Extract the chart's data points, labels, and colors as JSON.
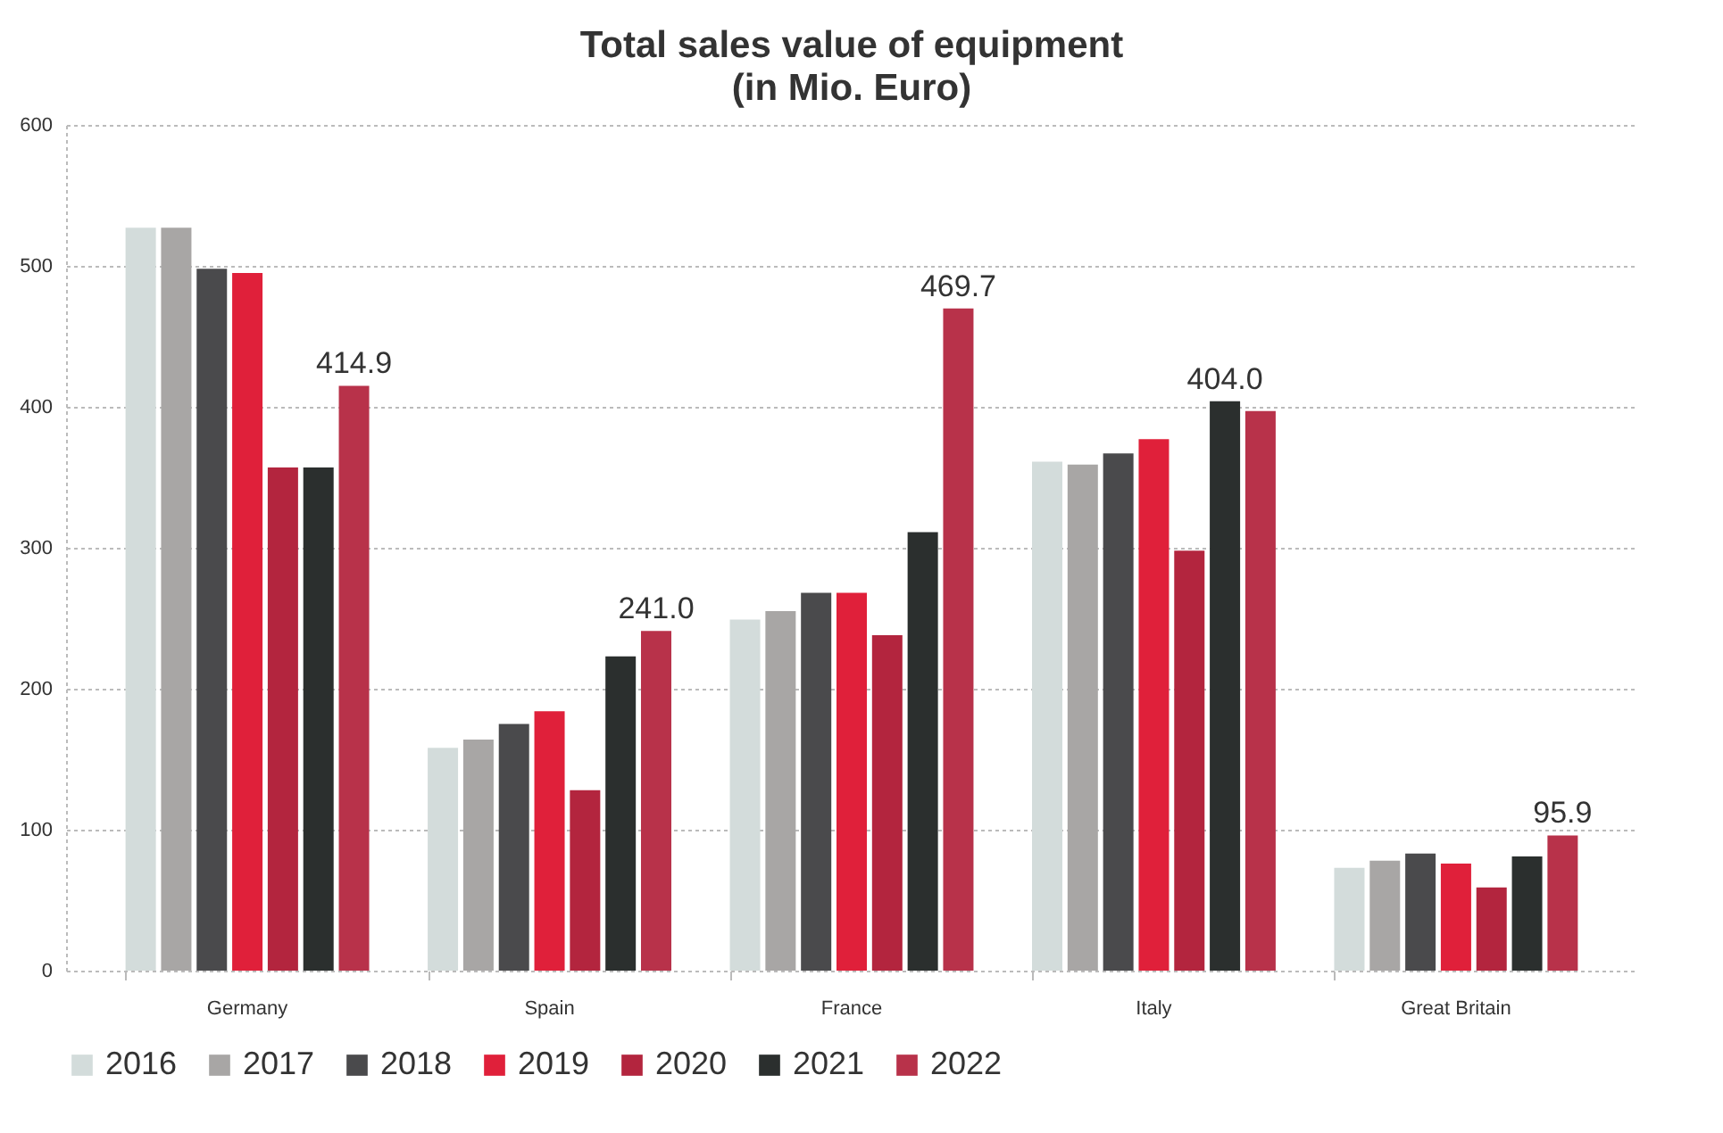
{
  "chart_data": {
    "type": "bar",
    "title": "Total sales value of equipment",
    "subtitle": "(in Mio. Euro)",
    "categories": [
      "Germany",
      "Spain",
      "France",
      "Italy",
      "Great Britain"
    ],
    "series": [
      {
        "name": "2016",
        "color": "#d3dcdb",
        "values": [
          527,
          158,
          249,
          361,
          73
        ]
      },
      {
        "name": "2017",
        "color": "#a8a6a5",
        "values": [
          527,
          164,
          255,
          359,
          78
        ]
      },
      {
        "name": "2018",
        "color": "#4a4a4c",
        "values": [
          498,
          175,
          268,
          367,
          83
        ]
      },
      {
        "name": "2019",
        "color": "#e0203a",
        "values": [
          495,
          184,
          268,
          377,
          76
        ]
      },
      {
        "name": "2020",
        "color": "#b3253e",
        "values": [
          357,
          128,
          238,
          298,
          59
        ]
      },
      {
        "name": "2021",
        "color": "#2b2f2e",
        "values": [
          357,
          223,
          311,
          404.0,
          81
        ],
        "value_labels": [
          null,
          null,
          null,
          "404.0",
          null
        ]
      },
      {
        "name": "2022",
        "color": "#b8324a",
        "values": [
          414.9,
          241.0,
          469.7,
          397,
          95.9
        ],
        "value_labels": [
          "414.9",
          "241.0",
          "469.7",
          null,
          "95.9"
        ]
      }
    ],
    "ylim": [
      0,
      600
    ],
    "yticks": [
      0,
      100,
      200,
      300,
      400,
      500,
      600
    ],
    "grid": "y",
    "legend": "bottom"
  }
}
